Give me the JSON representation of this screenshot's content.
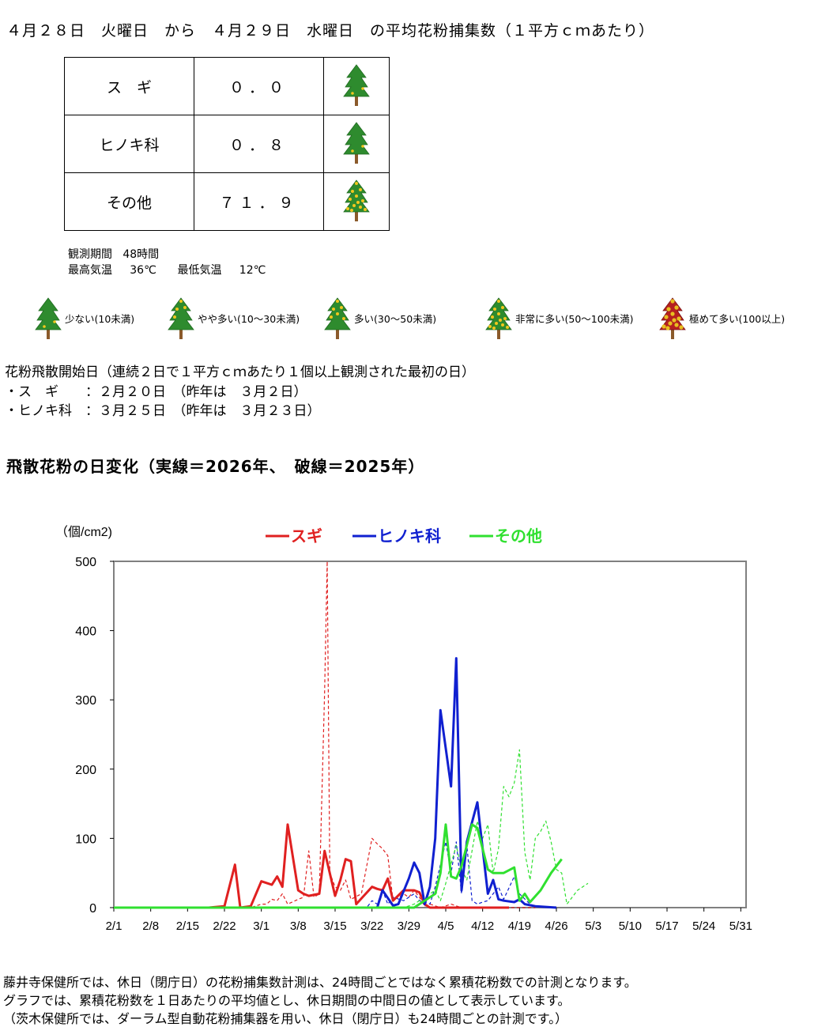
{
  "header": {
    "title": "４月２８日　火曜日　から　４月２９日　水曜日　の平均花粉捕集数（１平方ｃｍあたり）"
  },
  "table": {
    "rows": [
      {
        "name": "ス　ギ",
        "value": "０．０",
        "icon": "tree-low-icon"
      },
      {
        "name": "ヒノキ科",
        "value": "０．８",
        "icon": "tree-low-icon"
      },
      {
        "name": "その他",
        "value": "７１．９",
        "icon": "tree-very-high-icon"
      }
    ]
  },
  "observation": {
    "period_label": "観測期間",
    "period_value": "48時間",
    "max_label": "最高気温",
    "max_value": "36℃",
    "min_label": "最低気温",
    "min_value": "12℃"
  },
  "legend": [
    {
      "label": "少ない(10未満)",
      "icon": "tree-low-icon",
      "color": "#2e8b2e"
    },
    {
      "label": "やや多い(10～30未満)",
      "icon": "tree-moderate-icon",
      "color": "#2e8b2e"
    },
    {
      "label": "多い(30～50未満)",
      "icon": "tree-high-icon",
      "color": "#2e8b2e"
    },
    {
      "label": "非常に多い(50～100未満)",
      "icon": "tree-very-high-icon",
      "color": "#2e8b2e"
    },
    {
      "label": "極めて多い(100以上)",
      "icon": "tree-extreme-icon",
      "color": "#c0392b"
    }
  ],
  "season_start": {
    "heading": "花粉飛散開始日（連続２日で１平方ｃｍあたり１個以上観測された最初の日）",
    "lines": [
      "・ス　ギ　　：２月２０日　（昨年は　３月２日）",
      "・ヒノキ科　：３月２５日　（昨年は　３月２３日）"
    ]
  },
  "chart_heading": "飛散花粉の日変化（実線＝2026年、　破線＝2025年）",
  "notes": [
    "藤井寺保健所では、休日（閉庁日）の花粉捕集数計測は、24時間ごとではなく累積花粉数での計測となります。",
    "グラフでは、累積花粉数を１日あたりの平均値とし、休日期間の中間日の値として表示しています。",
    "（茨木保健所では、ダーラム型自動花粉捕集器を用い、休日（閉庁日）も24時間ごとの計測です。）"
  ],
  "chart_data": {
    "type": "line",
    "ylabel": "（個/cm2)",
    "ylim": [
      0,
      500
    ],
    "yticks": [
      0,
      100,
      200,
      300,
      400,
      500
    ],
    "xlim": [
      0,
      120
    ],
    "xticks": [
      0,
      7,
      14,
      21,
      28,
      35,
      42,
      49,
      56,
      63,
      70,
      77,
      84,
      91,
      98,
      105,
      112,
      119
    ],
    "xticklabels": [
      "2/1",
      "2/8",
      "2/15",
      "2/22",
      "3/1",
      "3/8",
      "3/15",
      "3/22",
      "3/29",
      "4/5",
      "4/12",
      "4/19",
      "4/26",
      "5/3",
      "5/10",
      "5/17",
      "5/24",
      "5/31"
    ],
    "grid": false,
    "legend_position": "top",
    "series": [
      {
        "name": "スギ",
        "color": "#e02020",
        "style": "solid",
        "width": 3,
        "points": [
          [
            0,
            0
          ],
          [
            18,
            0
          ],
          [
            21,
            2
          ],
          [
            23,
            62
          ],
          [
            24,
            0
          ],
          [
            26,
            2
          ],
          [
            28,
            38
          ],
          [
            30,
            33
          ],
          [
            31,
            45
          ],
          [
            32,
            30
          ],
          [
            33,
            120
          ],
          [
            35,
            25
          ],
          [
            36,
            20
          ],
          [
            37,
            17
          ],
          [
            39,
            20
          ],
          [
            40,
            82
          ],
          [
            42,
            17
          ],
          [
            43,
            40
          ],
          [
            44,
            70
          ],
          [
            45,
            67
          ],
          [
            46,
            5
          ],
          [
            49,
            30
          ],
          [
            50,
            27
          ],
          [
            51,
            25
          ],
          [
            52,
            42
          ],
          [
            53,
            10
          ],
          [
            55,
            25
          ],
          [
            57,
            25
          ],
          [
            58,
            22
          ],
          [
            59,
            5
          ],
          [
            60,
            0
          ],
          [
            75,
            0
          ]
        ]
      },
      {
        "name": "ヒノキ科",
        "color": "#1020d0",
        "style": "solid",
        "width": 3,
        "points": [
          [
            0,
            0
          ],
          [
            50,
            0
          ],
          [
            51,
            25
          ],
          [
            53,
            3
          ],
          [
            54,
            5
          ],
          [
            56,
            42
          ],
          [
            57,
            65
          ],
          [
            58,
            50
          ],
          [
            59,
            5
          ],
          [
            60,
            30
          ],
          [
            61,
            100
          ],
          [
            62,
            285
          ],
          [
            64,
            175
          ],
          [
            65,
            360
          ],
          [
            66,
            25
          ],
          [
            67,
            95
          ],
          [
            69,
            152
          ],
          [
            70,
            85
          ],
          [
            71,
            20
          ],
          [
            72,
            40
          ],
          [
            73,
            12
          ],
          [
            74,
            10
          ],
          [
            76,
            8
          ],
          [
            77,
            12
          ],
          [
            78,
            5
          ],
          [
            80,
            2
          ],
          [
            84,
            0
          ]
        ]
      },
      {
        "name": "その他",
        "color": "#30e030",
        "style": "solid",
        "width": 3,
        "points": [
          [
            0,
            0
          ],
          [
            57,
            0
          ],
          [
            59,
            10
          ],
          [
            61,
            20
          ],
          [
            62,
            50
          ],
          [
            63,
            120
          ],
          [
            64,
            45
          ],
          [
            65,
            42
          ],
          [
            66,
            60
          ],
          [
            68,
            120
          ],
          [
            69,
            115
          ],
          [
            71,
            55
          ],
          [
            72,
            50
          ],
          [
            74,
            50
          ],
          [
            76,
            58
          ],
          [
            77,
            10
          ],
          [
            78,
            20
          ],
          [
            79,
            8
          ],
          [
            81,
            25
          ],
          [
            83,
            50
          ],
          [
            85,
            70
          ]
        ]
      },
      {
        "name": "スギ",
        "color": "#e02020",
        "style": "dashed",
        "width": 1.2,
        "points": [
          [
            0,
            0
          ],
          [
            26,
            0
          ],
          [
            28,
            5
          ],
          [
            29,
            5
          ],
          [
            30,
            12
          ],
          [
            31,
            10
          ],
          [
            32,
            20
          ],
          [
            33,
            5
          ],
          [
            35,
            12
          ],
          [
            36,
            15
          ],
          [
            37,
            82
          ],
          [
            38,
            15
          ],
          [
            39,
            20
          ],
          [
            40,
            310
          ],
          [
            40.5,
            500
          ],
          [
            41,
            50
          ],
          [
            42,
            30
          ],
          [
            43,
            25
          ],
          [
            44,
            40
          ],
          [
            45,
            12
          ],
          [
            47,
            20
          ],
          [
            49,
            100
          ],
          [
            50,
            92
          ],
          [
            51,
            85
          ],
          [
            52,
            75
          ],
          [
            53,
            10
          ],
          [
            55,
            20
          ],
          [
            56,
            15
          ],
          [
            57,
            25
          ],
          [
            58,
            15
          ],
          [
            59,
            2
          ],
          [
            60,
            5
          ],
          [
            62,
            0
          ],
          [
            64,
            5
          ],
          [
            66,
            0
          ],
          [
            80,
            0
          ]
        ]
      },
      {
        "name": "ヒノキ科",
        "color": "#1020d0",
        "style": "dashed",
        "width": 1.2,
        "points": [
          [
            0,
            0
          ],
          [
            48,
            0
          ],
          [
            49,
            10
          ],
          [
            50,
            5
          ],
          [
            51,
            25
          ],
          [
            52,
            5
          ],
          [
            53,
            15
          ],
          [
            55,
            10
          ],
          [
            57,
            20
          ],
          [
            58,
            10
          ],
          [
            60,
            5
          ],
          [
            61,
            30
          ],
          [
            63,
            95
          ],
          [
            64,
            50
          ],
          [
            65,
            95
          ],
          [
            66,
            20
          ],
          [
            67,
            90
          ],
          [
            68,
            10
          ],
          [
            69,
            5
          ],
          [
            70,
            8
          ],
          [
            71,
            10
          ],
          [
            73,
            30
          ],
          [
            74,
            12
          ],
          [
            76,
            45
          ],
          [
            77,
            20
          ],
          [
            79,
            5
          ],
          [
            80,
            2
          ],
          [
            84,
            0
          ]
        ]
      },
      {
        "name": "その他",
        "color": "#30e030",
        "style": "dashed",
        "width": 1.2,
        "points": [
          [
            0,
            0
          ],
          [
            55,
            0
          ],
          [
            57,
            5
          ],
          [
            59,
            15
          ],
          [
            61,
            25
          ],
          [
            62,
            10
          ],
          [
            63,
            35
          ],
          [
            65,
            90
          ],
          [
            66,
            55
          ],
          [
            67,
            40
          ],
          [
            69,
            125
          ],
          [
            70,
            100
          ],
          [
            71,
            120
          ],
          [
            72,
            50
          ],
          [
            73,
            85
          ],
          [
            74,
            175
          ],
          [
            75,
            160
          ],
          [
            76,
            180
          ],
          [
            77,
            228
          ],
          [
            78,
            80
          ],
          [
            79,
            40
          ],
          [
            80,
            100
          ],
          [
            81,
            110
          ],
          [
            82,
            125
          ],
          [
            83,
            95
          ],
          [
            84,
            55
          ],
          [
            85,
            50
          ],
          [
            86,
            5
          ],
          [
            88,
            25
          ],
          [
            90,
            35
          ]
        ]
      }
    ]
  }
}
